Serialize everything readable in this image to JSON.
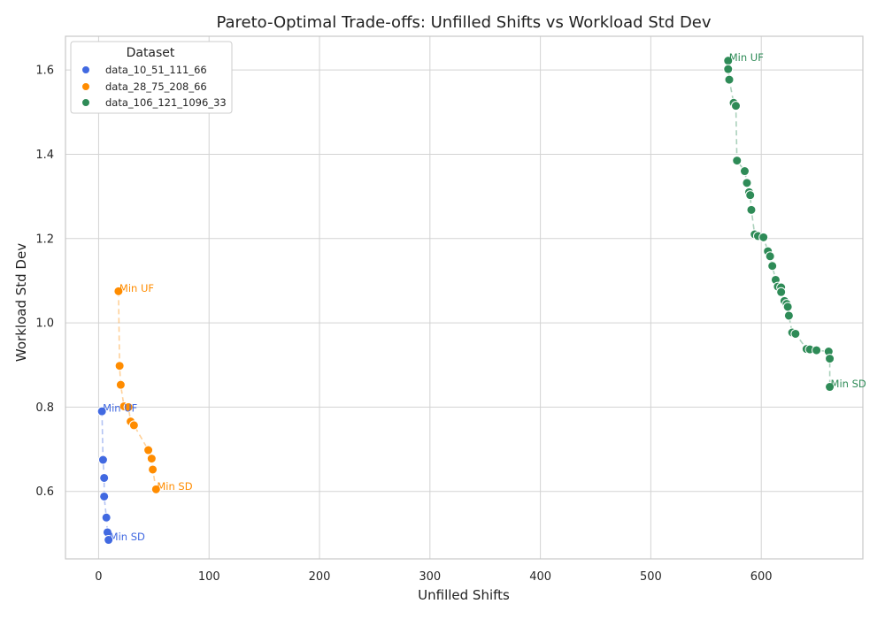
{
  "chart_data": {
    "type": "scatter",
    "title": "Pareto-Optimal Trade-offs: Unfilled Shifts vs Workload Std Dev",
    "xlabel": "Unfilled Shifts",
    "ylabel": "Workload Std Dev",
    "xlim": [
      -30,
      692
    ],
    "ylim": [
      0.44,
      1.68
    ],
    "xticks": [
      0,
      100,
      200,
      300,
      400,
      500,
      600
    ],
    "yticks": [
      0.6,
      0.8,
      1.0,
      1.2,
      1.4,
      1.6
    ],
    "xtick_labels": [
      "0",
      "100",
      "200",
      "300",
      "400",
      "500",
      "600"
    ],
    "ytick_labels": [
      "0.6",
      "0.8",
      "1.0",
      "1.2",
      "1.4",
      "1.6"
    ],
    "grid": true,
    "legend": {
      "title": "Dataset",
      "placement": "top-left"
    },
    "series": [
      {
        "name": "data_10_51_111_66",
        "color": "#4169E1",
        "points": [
          [
            3,
            0.79
          ],
          [
            4,
            0.675
          ],
          [
            5,
            0.632
          ],
          [
            5,
            0.588
          ],
          [
            7,
            0.538
          ],
          [
            8,
            0.503
          ],
          [
            9,
            0.485
          ]
        ],
        "annotations": [
          {
            "text": "Min UF",
            "x": 3,
            "y": 0.79
          },
          {
            "text": "Min SD",
            "x": 9,
            "y": 0.485
          }
        ]
      },
      {
        "name": "data_28_75_208_66",
        "color": "#FF8C00",
        "points": [
          [
            18,
            1.075
          ],
          [
            19,
            0.898
          ],
          [
            20,
            0.853
          ],
          [
            23,
            0.802
          ],
          [
            27,
            0.8
          ],
          [
            29,
            0.766
          ],
          [
            32,
            0.757
          ],
          [
            45,
            0.698
          ],
          [
            48,
            0.678
          ],
          [
            49,
            0.652
          ],
          [
            52,
            0.605
          ]
        ],
        "annotations": [
          {
            "text": "Min UF",
            "x": 18,
            "y": 1.075
          },
          {
            "text": "Min SD",
            "x": 52,
            "y": 0.605
          }
        ]
      },
      {
        "name": "data_106_121_1096_33",
        "color": "#2E8B57",
        "points": [
          [
            570,
            1.622
          ],
          [
            570,
            1.602
          ],
          [
            571,
            1.577
          ],
          [
            575,
            1.522
          ],
          [
            577,
            1.515
          ],
          [
            578,
            1.385
          ],
          [
            585,
            1.36
          ],
          [
            587,
            1.332
          ],
          [
            589,
            1.31
          ],
          [
            590,
            1.303
          ],
          [
            591,
            1.268
          ],
          [
            594,
            1.21
          ],
          [
            597,
            1.206
          ],
          [
            602,
            1.203
          ],
          [
            606,
            1.17
          ],
          [
            608,
            1.158
          ],
          [
            610,
            1.135
          ],
          [
            613,
            1.102
          ],
          [
            615,
            1.086
          ],
          [
            618,
            1.084
          ],
          [
            618,
            1.073
          ],
          [
            621,
            1.052
          ],
          [
            623,
            1.045
          ],
          [
            624,
            1.038
          ],
          [
            625,
            1.017
          ],
          [
            628,
            0.977
          ],
          [
            631,
            0.974
          ],
          [
            641,
            0.938
          ],
          [
            644,
            0.937
          ],
          [
            650,
            0.935
          ],
          [
            661,
            0.932
          ],
          [
            662,
            0.915
          ],
          [
            662,
            0.848
          ]
        ],
        "annotations": [
          {
            "text": "Min UF",
            "x": 570,
            "y": 1.622
          },
          {
            "text": "Min SD",
            "x": 662,
            "y": 0.848
          }
        ]
      }
    ]
  }
}
